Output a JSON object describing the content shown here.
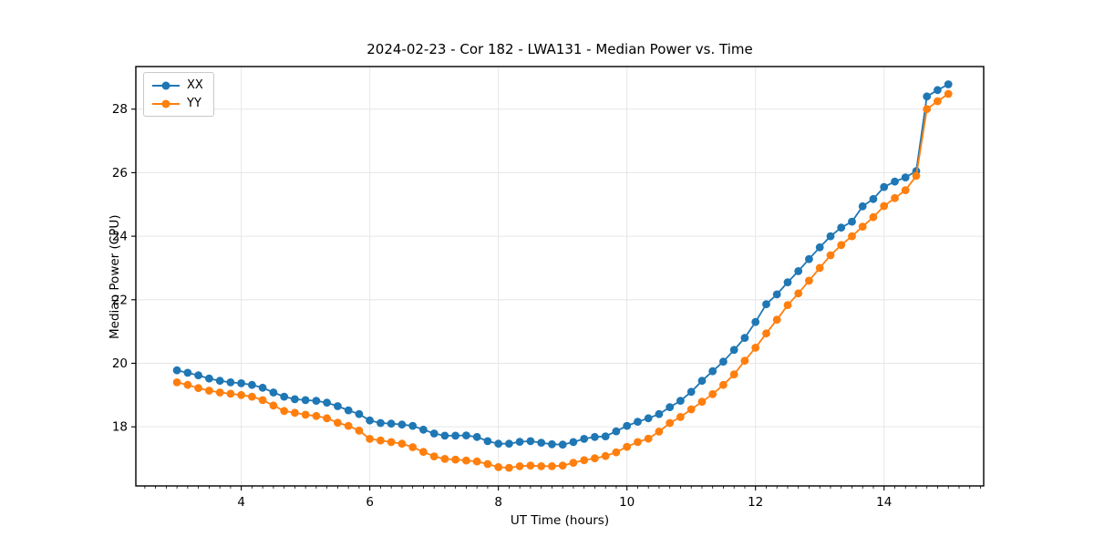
{
  "chart_data": {
    "type": "line",
    "marker": "circle",
    "title": "2024-02-23 - Cor 182 - LWA131 - Median Power vs. Time",
    "xlabel": "UT Time (hours)",
    "ylabel": "Median Power (CPU)",
    "xlim": [
      2.36,
      15.55
    ],
    "ylim": [
      16.14,
      29.34
    ],
    "xticks": [
      4,
      6,
      8,
      10,
      12,
      14
    ],
    "yticks": [
      18,
      20,
      22,
      24,
      26,
      28
    ],
    "x_minor_step": 0.16667,
    "grid": "major",
    "grid_color": "#e6e6e6",
    "legend_position": "upper-left",
    "x": [
      3.0,
      3.167,
      3.333,
      3.5,
      3.667,
      3.833,
      4.0,
      4.167,
      4.333,
      4.5,
      4.667,
      4.833,
      5.0,
      5.167,
      5.333,
      5.5,
      5.667,
      5.833,
      6.0,
      6.167,
      6.333,
      6.5,
      6.667,
      6.833,
      7.0,
      7.167,
      7.333,
      7.5,
      7.667,
      7.833,
      8.0,
      8.167,
      8.333,
      8.5,
      8.667,
      8.833,
      9.0,
      9.167,
      9.333,
      9.5,
      9.667,
      9.833,
      10.0,
      10.167,
      10.333,
      10.5,
      10.667,
      10.833,
      11.0,
      11.167,
      11.333,
      11.5,
      11.667,
      11.833,
      12.0,
      12.167,
      12.333,
      12.5,
      12.667,
      12.833,
      13.0,
      13.167,
      13.333,
      13.5,
      13.667,
      13.833,
      14.0,
      14.167,
      14.333,
      14.5,
      14.667,
      14.833,
      15.0
    ],
    "series": [
      {
        "name": "XX",
        "color": "#1f77b4",
        "values": [
          19.78,
          19.7,
          19.62,
          19.52,
          19.45,
          19.4,
          19.37,
          19.32,
          19.23,
          19.08,
          18.95,
          18.87,
          18.84,
          18.82,
          18.76,
          18.65,
          18.52,
          18.4,
          18.2,
          18.12,
          18.1,
          18.07,
          18.03,
          17.91,
          17.79,
          17.72,
          17.72,
          17.73,
          17.68,
          17.55,
          17.47,
          17.47,
          17.53,
          17.55,
          17.5,
          17.45,
          17.44,
          17.52,
          17.62,
          17.68,
          17.7,
          17.86,
          18.03,
          18.16,
          18.27,
          18.4,
          18.62,
          18.82,
          19.1,
          19.45,
          19.75,
          20.05,
          20.42,
          20.8,
          21.3,
          21.86,
          22.17,
          22.55,
          22.9,
          23.28,
          23.65,
          24.0,
          24.27,
          24.46,
          24.94,
          25.17,
          25.55,
          25.72,
          25.85,
          26.05,
          28.4,
          28.6,
          28.78
        ]
      },
      {
        "name": "YY",
        "color": "#ff7f0e",
        "values": [
          19.4,
          19.32,
          19.22,
          19.14,
          19.08,
          19.04,
          19.0,
          18.95,
          18.84,
          18.67,
          18.5,
          18.44,
          18.38,
          18.34,
          18.27,
          18.13,
          18.03,
          17.88,
          17.62,
          17.57,
          17.52,
          17.47,
          17.36,
          17.21,
          17.07,
          16.99,
          16.97,
          16.94,
          16.91,
          16.83,
          16.73,
          16.71,
          16.76,
          16.78,
          16.76,
          16.76,
          16.78,
          16.87,
          16.95,
          17.01,
          17.08,
          17.2,
          17.37,
          17.52,
          17.63,
          17.85,
          18.12,
          18.31,
          18.55,
          18.79,
          19.03,
          19.32,
          19.65,
          20.08,
          20.49,
          20.94,
          21.37,
          21.83,
          22.2,
          22.6,
          23.0,
          23.4,
          23.72,
          24.0,
          24.3,
          24.6,
          24.95,
          25.2,
          25.45,
          25.9,
          28.0,
          28.25,
          28.48
        ]
      }
    ]
  }
}
